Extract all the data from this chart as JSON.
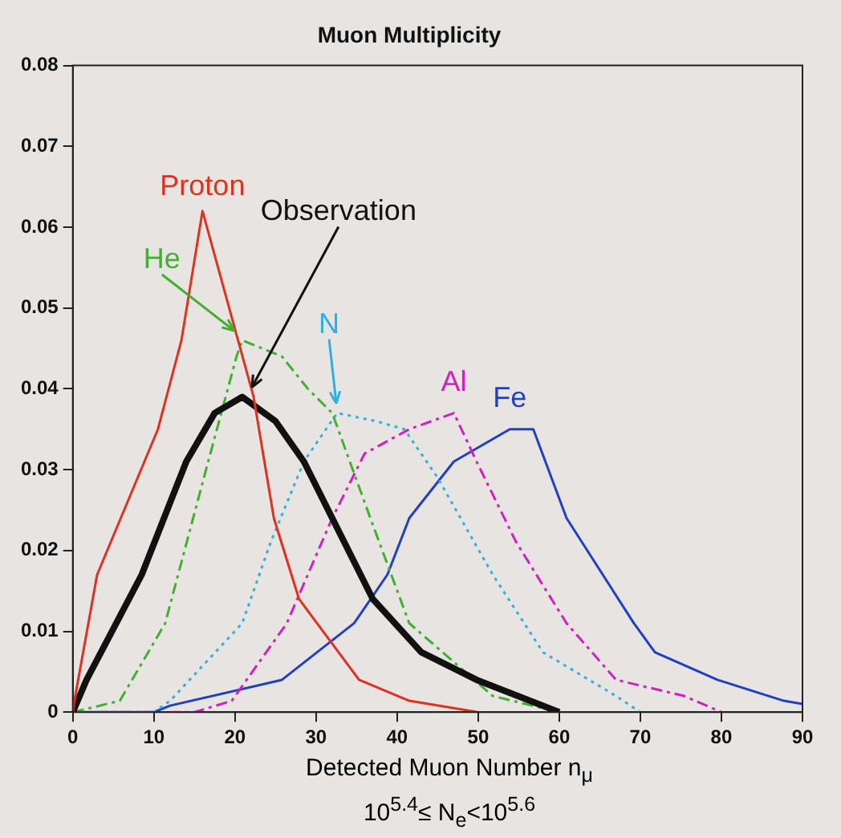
{
  "chart_data": {
    "type": "line",
    "title": "Muon Multiplicity",
    "xlabel": "Detected Muon Number n$_{μ}$\n10$^{5.4}$≤ N$_{e}$<10$^{5.6}$",
    "xlim": [
      0,
      90
    ],
    "xticks": [
      0,
      10,
      20,
      30,
      40,
      50,
      60,
      70,
      80,
      90
    ],
    "ylim": [
      0,
      0.08
    ],
    "yticks": [
      0,
      0.01,
      0.02,
      0.03,
      0.04,
      0.05,
      0.06,
      0.07,
      0.08
    ],
    "grid": false,
    "legend": false,
    "marker": "none",
    "series": [
      {
        "name": "Proton",
        "color": "#e03020",
        "line_style": "solid",
        "x": [
          0,
          0.2,
          3,
          10.5,
          13.4,
          16,
          22.3,
          24.8,
          27.9,
          35.3,
          41.5,
          50
        ],
        "values": [
          0,
          0.0014,
          0.017,
          0.035,
          0.046,
          0.062,
          0.039,
          0.024,
          0.014,
          0.004,
          0.0014,
          0
        ]
      },
      {
        "name": "Observation",
        "color": "#111111",
        "line_style": "solid",
        "x": [
          0,
          1.7,
          8.5,
          14,
          17.5,
          20.9,
          25,
          28.5,
          37,
          43,
          49.8,
          60
        ],
        "values": [
          0,
          0.004,
          0.017,
          0.031,
          0.037,
          0.039,
          0.036,
          0.031,
          0.014,
          0.0074,
          0.004,
          0
        ]
      },
      {
        "name": "He",
        "color": "#40b030",
        "line_style": "dashed",
        "x": [
          0,
          5.8,
          11.4,
          16.7,
          20.2,
          20.9,
          25.8,
          29,
          32,
          36.7,
          41.5,
          51.8,
          60
        ],
        "values": [
          0,
          0.0014,
          0.011,
          0.031,
          0.044,
          0.046,
          0.044,
          0.04,
          0.037,
          0.024,
          0.011,
          0.002,
          0
        ]
      },
      {
        "name": "N",
        "color": "#30b0e0",
        "line_style": "dotted",
        "x": [
          0,
          10,
          12,
          20.9,
          24.4,
          28.5,
          32.6,
          37.4,
          40.9,
          45,
          51.8,
          58,
          67,
          70
        ],
        "values": [
          0,
          0,
          0.0014,
          0.011,
          0.021,
          0.031,
          0.037,
          0.036,
          0.035,
          0.029,
          0.017,
          0.0074,
          0.002,
          0
        ]
      },
      {
        "name": "Al",
        "color": "#d020c0",
        "line_style": "dashed",
        "x": [
          0,
          15,
          19.6,
          26.4,
          32,
          36,
          41.5,
          47,
          49.8,
          54.7,
          60.9,
          67,
          75.4,
          80
        ],
        "values": [
          0,
          0,
          0.0014,
          0.011,
          0.024,
          0.032,
          0.035,
          0.037,
          0.031,
          0.021,
          0.011,
          0.004,
          0.002,
          0
        ]
      },
      {
        "name": "Fe",
        "color": "#2040c0",
        "line_style": "solid",
        "x": [
          0,
          10,
          12,
          25.8,
          34.7,
          38.8,
          41.5,
          47,
          53.9,
          56.8,
          60.9,
          69.2,
          71.8,
          79.5,
          87.7,
          90
        ],
        "values": [
          0,
          0,
          0.0008,
          0.004,
          0.011,
          0.017,
          0.024,
          0.031,
          0.035,
          0.035,
          0.024,
          0.011,
          0.0074,
          0.004,
          0.0014,
          0.001
        ]
      }
    ]
  }
}
